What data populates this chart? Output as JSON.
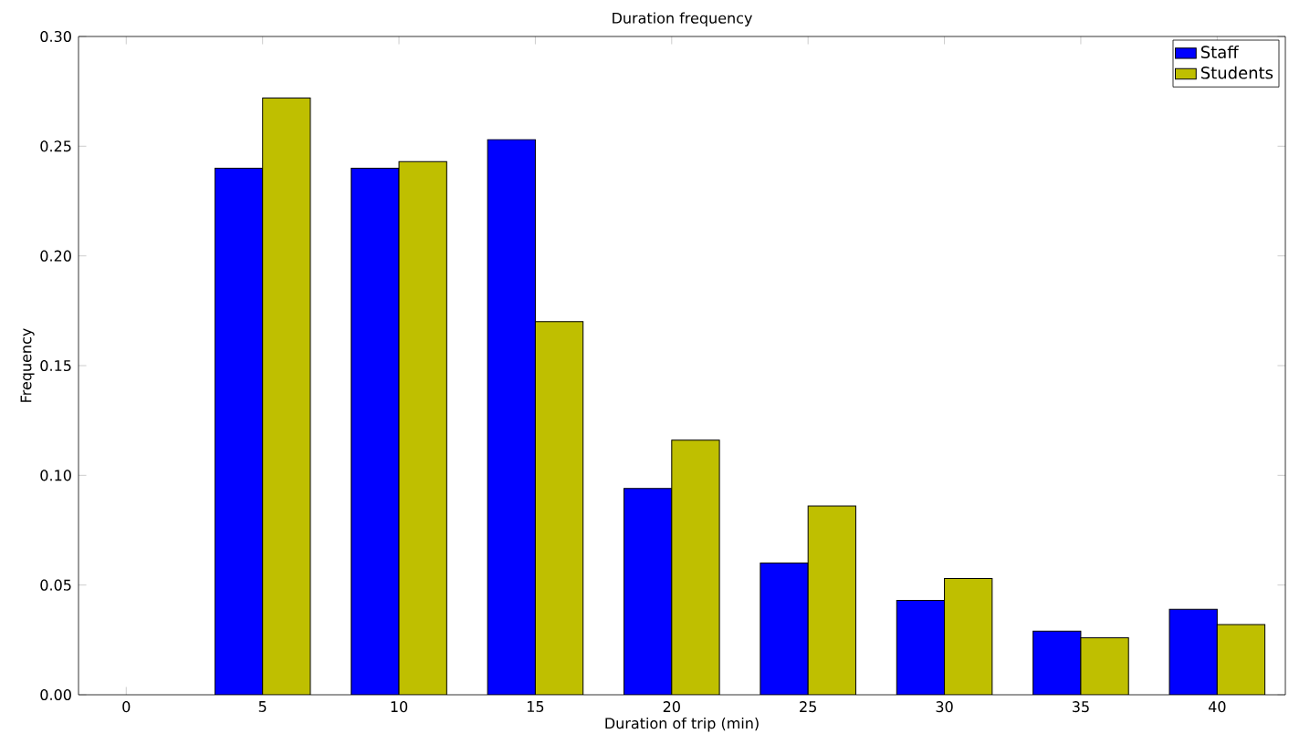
{
  "chart_data": {
    "type": "bar",
    "title": "Duration frequency",
    "xlabel": "Duration of trip (min)",
    "ylabel": "Frequency",
    "categories": [
      "0",
      "5",
      "10",
      "15",
      "20",
      "25",
      "30",
      "35",
      "40"
    ],
    "series": [
      {
        "name": "Staff",
        "color": "#0000ff",
        "values": [
          null,
          0.24,
          0.24,
          0.253,
          0.094,
          0.06,
          0.043,
          0.029,
          0.039
        ]
      },
      {
        "name": "Students",
        "color": "#bfbf00",
        "values": [
          null,
          0.272,
          0.243,
          0.17,
          0.116,
          0.086,
          0.053,
          0.026,
          0.032
        ]
      }
    ],
    "ylim": [
      0,
      0.3
    ],
    "yticks": [
      {
        "value": 0,
        "label": "0.00"
      },
      {
        "value": 0.05,
        "label": "0.05"
      },
      {
        "value": 0.1,
        "label": "0.10"
      },
      {
        "value": 0.15,
        "label": "0.15"
      },
      {
        "value": 0.2,
        "label": "0.20"
      },
      {
        "value": 0.25,
        "label": "0.25"
      },
      {
        "value": 0.3,
        "label": "0.30"
      }
    ],
    "legend": "top right",
    "grid": false
  }
}
